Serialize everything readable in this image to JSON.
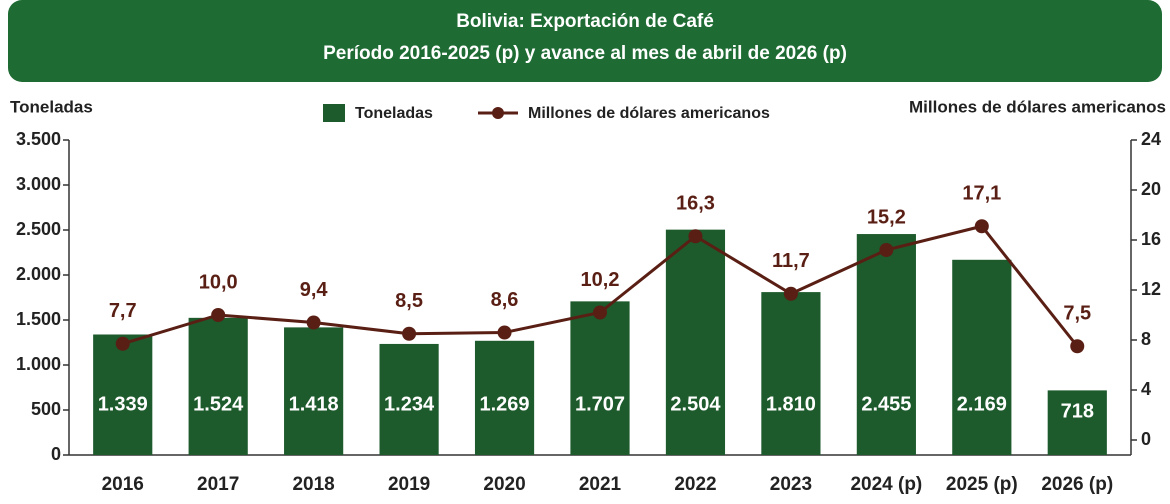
{
  "chart_data": {
    "type": "bar_line",
    "title": "Bolivia: Exportación de Café",
    "subtitle": "Período 2016-2025 (p) y avance al mes de abril de 2026 (p)",
    "ylabel": "Toneladas",
    "y2label": "Millones de dólares americanos",
    "categories": [
      "2016",
      "2017",
      "2018",
      "2019",
      "2020",
      "2021",
      "2022",
      "2023",
      "2024 (p)",
      "2025 (p)",
      "2026 (p)"
    ],
    "series": [
      {
        "name": "Toneladas",
        "type": "bar",
        "color": "#1d5a2c",
        "values": [
          1339,
          1524,
          1418,
          1234,
          1269,
          1707,
          2504,
          1810,
          2455,
          2169,
          718
        ],
        "value_labels": [
          "1.339",
          "1.524",
          "1.418",
          "1.234",
          "1.269",
          "1.707",
          "2.504",
          "1.810",
          "2.455",
          "2.169",
          "718"
        ]
      },
      {
        "name": "Millones de dólares americanos",
        "type": "line",
        "axis": "y2",
        "color": "#5a1f14",
        "values": [
          7.7,
          10.0,
          9.4,
          8.5,
          8.6,
          10.2,
          16.3,
          11.7,
          15.2,
          17.1,
          7.5
        ],
        "value_labels": [
          "7,7",
          "10,0",
          "9,4",
          "8,5",
          "8,6",
          "10,2",
          "16,3",
          "11,7",
          "15,2",
          "17,1",
          "7,5"
        ]
      }
    ],
    "ylim": [
      0,
      3500
    ],
    "yticks": [
      0,
      500,
      {
        "value": 1000,
        "label": "1.000"
      },
      {
        "value": 1500,
        "label": "1.500"
      },
      {
        "value": 2000,
        "label": "2.000"
      },
      {
        "value": 2500,
        "label": "2.500"
      },
      {
        "value": 3000,
        "label": "3.000"
      },
      {
        "value": 3500,
        "label": "3.500"
      }
    ],
    "y2lim": [
      -1.2,
      24
    ],
    "y2ticks": [
      0,
      4,
      8,
      12,
      16,
      20,
      24
    ],
    "grid": false,
    "legend": "top"
  }
}
